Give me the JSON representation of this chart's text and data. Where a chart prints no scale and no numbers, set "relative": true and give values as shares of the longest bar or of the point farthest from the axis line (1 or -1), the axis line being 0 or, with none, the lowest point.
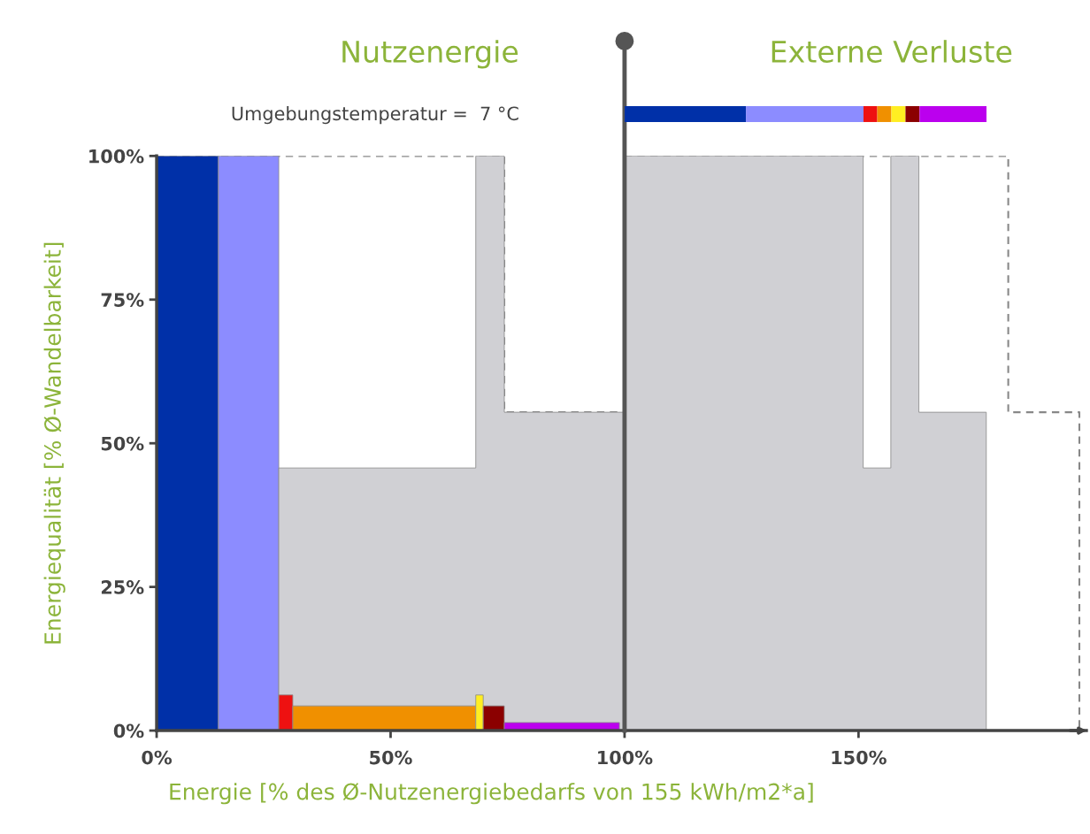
{
  "chart_data": [
    {
      "type": "area",
      "xlabel": "Energie [% des Ø-Nutzenergiebedarfs von 155 kWh/m2*a]",
      "ylabel": "Energiequalität [% Ø-Wandelbarkeit]",
      "annotations": [
        "Nutzenergie",
        "Externe Verluste",
        "Umgebungstemperatur =  7 °C"
      ],
      "xlim": [
        0,
        198.7
      ],
      "ylim": [
        0,
        100
      ],
      "xticks": [
        {
          "value": 0,
          "label": "0%"
        },
        {
          "value": 50,
          "label": "50%"
        },
        {
          "value": 100,
          "label": "100%"
        },
        {
          "value": 150,
          "label": "150%"
        }
      ],
      "yticks": [
        {
          "value": 0,
          "label": "0%"
        },
        {
          "value": 25,
          "label": "25%"
        },
        {
          "value": 50,
          "label": "50%"
        },
        {
          "value": 75,
          "label": "75%"
        },
        {
          "value": 100,
          "label": "100%"
        }
      ],
      "ref_lines": [
        {
          "axis": "x",
          "value": 100,
          "color": "#555555"
        }
      ],
      "series": [
        {
          "color": "#0030a8",
          "x": [
            0,
            0,
            13.2,
            13.2
          ],
          "values": [
            0,
            100,
            100,
            0
          ]
        },
        {
          "color": "#8c8cff",
          "x": [
            13.2,
            13.2,
            26.1,
            26.1
          ],
          "values": [
            0,
            100,
            100,
            0
          ]
        },
        {
          "color": "#d0d0d4",
          "x": [
            26.1,
            26.1,
            68.2,
            68.2,
            74.3,
            74.3,
            100,
            100,
            151.0,
            151.0,
            156.9,
            156.9,
            162.9,
            162.9,
            177.3,
            177.3
          ],
          "values": [
            0,
            45.7,
            45.7,
            100,
            100,
            55.4,
            55.4,
            100,
            100,
            45.7,
            45.7,
            100,
            100,
            55.4,
            55.4,
            0
          ]
        },
        {
          "color": "#ee1111",
          "x": [
            26.1,
            26.1,
            29.1,
            29.1
          ],
          "values": [
            0,
            6.2,
            6.2,
            0
          ]
        },
        {
          "color": "#f09000",
          "x": [
            29.1,
            29.1,
            68.2,
            68.2
          ],
          "values": [
            0,
            4.3,
            4.3,
            0
          ]
        },
        {
          "color": "#ffee22",
          "x": [
            68.2,
            68.2,
            69.8,
            69.8
          ],
          "values": [
            0,
            6.2,
            6.2,
            0
          ]
        },
        {
          "color": "#8b0000",
          "x": [
            69.8,
            69.8,
            74.3,
            74.3
          ],
          "values": [
            0,
            4.3,
            4.3,
            0
          ]
        },
        {
          "color": "#bb00ee",
          "x": [
            74.3,
            74.3,
            98.9,
            98.9
          ],
          "values": [
            0,
            1.4,
            1.4,
            0
          ]
        },
        {
          "type": "line",
          "color": "#888888",
          "line_style": "dashed",
          "x": [
            0,
            74.3,
            74.3,
            100,
            100,
            182.0,
            182.0,
            197.2,
            197.2
          ],
          "values": [
            100,
            100,
            55.4,
            55.4,
            100,
            100,
            55.4,
            55.4,
            0
          ]
        }
      ]
    },
    {
      "type": "bar",
      "orientation": "horizontal",
      "stacked": true,
      "relative": true,
      "categories": [
        null
      ],
      "series": [
        {
          "color": "#0030a8",
          "values": [
            0.335
          ]
        },
        {
          "color": "#8c8cff",
          "values": [
            0.325
          ]
        },
        {
          "color": "#ee1111",
          "values": [
            0.038
          ]
        },
        {
          "color": "#f09000",
          "values": [
            0.039
          ]
        },
        {
          "color": "#ffee22",
          "values": [
            0.039
          ]
        },
        {
          "color": "#8b0000",
          "values": [
            0.039
          ]
        },
        {
          "color": "#bb00ee",
          "values": [
            0.185
          ]
        }
      ]
    }
  ]
}
